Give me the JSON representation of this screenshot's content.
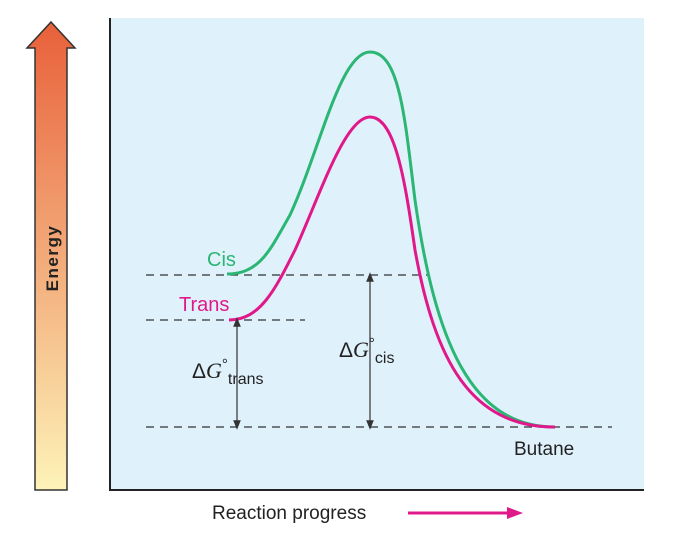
{
  "y_axis": {
    "label": "Energy",
    "gradient_top": "#e8603a",
    "gradient_bottom": "#fdf3b8"
  },
  "x_axis": {
    "label": "Reaction progress",
    "arrow_color": "#e0198a"
  },
  "plot_background": "#dff1fb",
  "curves": {
    "cis": {
      "label": "Cis",
      "color": "#2bb673"
    },
    "trans": {
      "label": "Trans",
      "color": "#e0198a"
    }
  },
  "product": {
    "label": "Butane"
  },
  "delta_trans": {
    "delta": "Δ",
    "G": "G",
    "deg": "°",
    "sub": "trans"
  },
  "delta_cis": {
    "delta": "Δ",
    "G": "G",
    "deg": "°",
    "sub": "cis"
  }
}
